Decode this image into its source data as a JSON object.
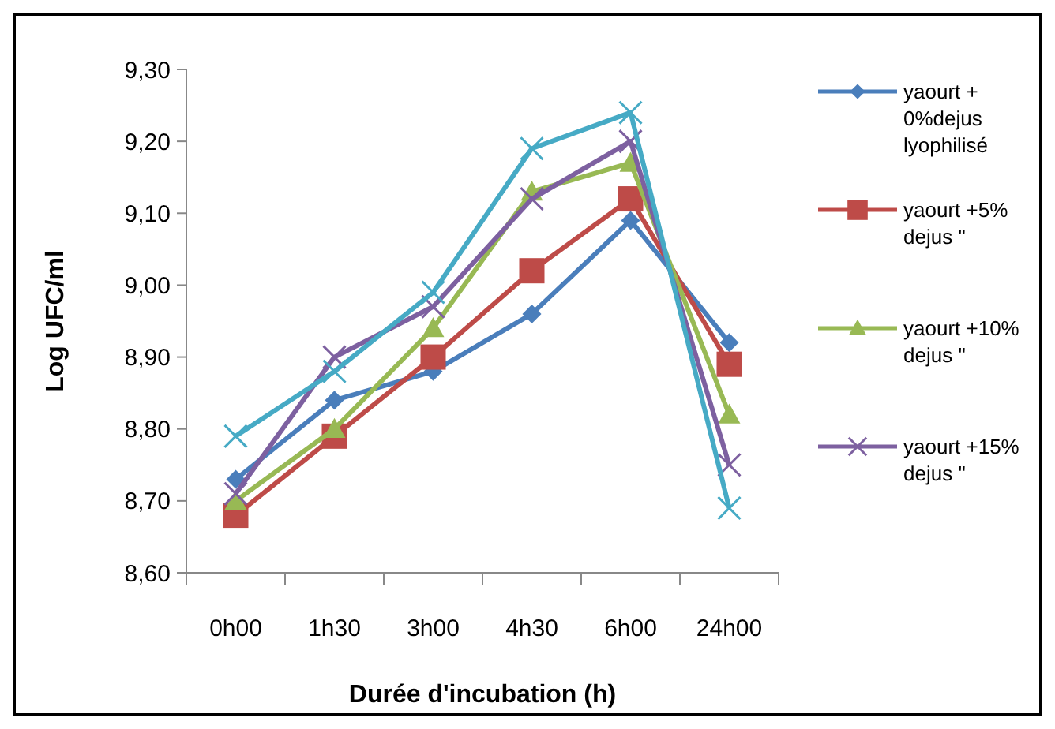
{
  "chart_data": {
    "type": "line",
    "xlabel": "Durée d'incubation (h)",
    "ylabel": "Log UFC/ml",
    "categories": [
      "0h00",
      "1h30",
      "3h00",
      "4h30",
      "6h00",
      "24h00"
    ],
    "ylim": [
      8.6,
      9.3
    ],
    "yticks": [
      {
        "value": 8.6,
        "label": "8,60"
      },
      {
        "value": 8.7,
        "label": "8,70"
      },
      {
        "value": 8.8,
        "label": "8,80"
      },
      {
        "value": 8.9,
        "label": "8,90"
      },
      {
        "value": 9.0,
        "label": "9,00"
      },
      {
        "value": 9.1,
        "label": "9,10"
      },
      {
        "value": 9.2,
        "label": "9,20"
      },
      {
        "value": 9.3,
        "label": "9,30"
      }
    ],
    "grid": false,
    "legend": "right",
    "series": [
      {
        "name": "yaourt + 0%dejus lyophilisé",
        "color": "#4a7ebb",
        "marker": "diamond",
        "values": [
          8.73,
          8.84,
          8.88,
          8.96,
          9.09,
          8.92
        ]
      },
      {
        "name": "yaourt +5% dejus \"",
        "color": "#be4b48",
        "marker": "square",
        "values": [
          8.68,
          8.79,
          8.9,
          9.02,
          9.12,
          8.89
        ]
      },
      {
        "name": "yaourt +10% dejus \"",
        "color": "#98b954",
        "marker": "triangle",
        "values": [
          8.7,
          8.8,
          8.94,
          9.13,
          9.17,
          8.82
        ]
      },
      {
        "name": "yaourt +15% dejus \"",
        "color": "#7d60a0",
        "marker": "cross",
        "values": [
          8.71,
          8.9,
          8.97,
          9.12,
          9.2,
          8.75
        ]
      },
      {
        "color": "#46aac5",
        "marker": "cross",
        "values": [
          8.79,
          8.88,
          8.99,
          9.19,
          9.24,
          8.69
        ]
      }
    ]
  }
}
